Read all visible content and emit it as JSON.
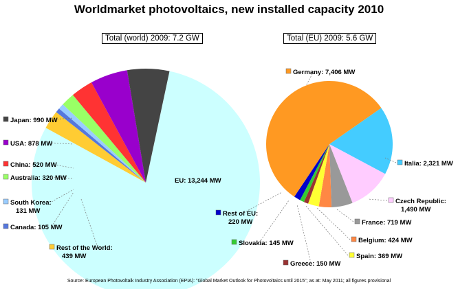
{
  "title": "Worldmarket photovoltaics, new installed capacity 2010",
  "source": "Source: European Photovoltaik Industry Association (EPIA): \"Global Market Outlook for Photovoltaics until 2015\"; as at: May 2011; all figures provisional",
  "chart_data": [
    {
      "type": "pie",
      "subtitle": "Total (world) 2009: 7.2 GW",
      "slices": [
        {
          "label": "EU: 13,244 MW",
          "value": 13244,
          "color": "#ccffff"
        },
        {
          "label": "Rest of the World: 439 MW",
          "label_lines": [
            "Rest of the World:",
            "439 MW"
          ],
          "value": 439,
          "color": "#ffcc33"
        },
        {
          "label": "Canada: 105 MW",
          "value": 105,
          "color": "#5577dd"
        },
        {
          "label": "South Korea: 131 MW",
          "label_lines": [
            "South Korea:",
            "131 MW"
          ],
          "value": 131,
          "color": "#99ccff"
        },
        {
          "label": "Australia: 320 MW",
          "value": 320,
          "color": "#99ff66"
        },
        {
          "label": "China: 520 MW",
          "value": 520,
          "color": "#ff3333"
        },
        {
          "label": "USA: 878 MW",
          "value": 878,
          "color": "#9900cc"
        },
        {
          "label": "Japan: 990 MW",
          "value": 990,
          "color": "#444444"
        }
      ]
    },
    {
      "type": "pie",
      "subtitle": "Total (EU) 2009: 5.6 GW",
      "slices": [
        {
          "label": "Italia: 2,321 MW",
          "value": 2321,
          "color": "#44ccff"
        },
        {
          "label": "Czech Republic: 1,490 MW",
          "label_lines": [
            "Czech Republic:",
            "1,490 MW"
          ],
          "value": 1490,
          "color": "#ffccff"
        },
        {
          "label": "France: 719 MW",
          "value": 719,
          "color": "#999999"
        },
        {
          "label": "Belgium: 424 MW",
          "value": 424,
          "color": "#ff8844"
        },
        {
          "label": "Spain: 369 MW",
          "value": 369,
          "color": "#ffff33"
        },
        {
          "label": "Greece: 150 MW",
          "value": 150,
          "color": "#993333"
        },
        {
          "label": "Slovakia: 145 MW",
          "value": 145,
          "color": "#33cc33"
        },
        {
          "label": "Rest of EU: 220 MW",
          "label_lines": [
            "Rest of EU:",
            "220 MW"
          ],
          "value": 220,
          "color": "#0000cc"
        },
        {
          "label": "Germany: 7,406 MW",
          "value": 7406,
          "color": "#ff9922"
        }
      ]
    }
  ]
}
